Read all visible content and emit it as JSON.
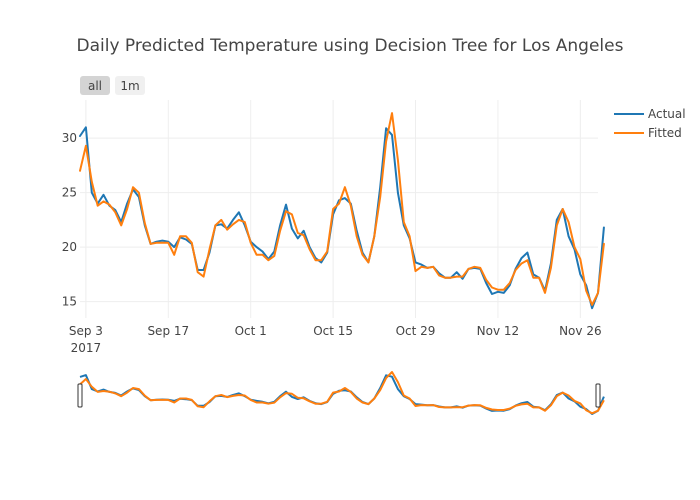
{
  "chart_data": {
    "type": "line",
    "title": "Daily Predicted Temperature using Decision Tree for Los Angeles",
    "xlabel": "",
    "ylabel": "",
    "x_start": "2017-09-02",
    "x_range": [
      "2017-09-02",
      "2017-11-29"
    ],
    "ylim": [
      13.5,
      33.5
    ],
    "yticks": [
      15,
      20,
      25,
      30
    ],
    "xticks": [
      {
        "date": "2017-09-03",
        "label": "Sep 3",
        "sublabel": "2017"
      },
      {
        "date": "2017-09-17",
        "label": "Sep 17",
        "sublabel": ""
      },
      {
        "date": "2017-10-01",
        "label": "Oct 1",
        "sublabel": ""
      },
      {
        "date": "2017-10-15",
        "label": "Oct 15",
        "sublabel": ""
      },
      {
        "date": "2017-10-29",
        "label": "Oct 29",
        "sublabel": ""
      },
      {
        "date": "2017-11-12",
        "label": "Nov 12",
        "sublabel": ""
      },
      {
        "date": "2017-11-26",
        "label": "Nov 26",
        "sublabel": ""
      }
    ],
    "grid": true,
    "legend_position": "top-right",
    "range_buttons": [
      "all",
      "1m"
    ],
    "active_button": "all",
    "range_slider": true,
    "series": [
      {
        "name": "Actual",
        "color": "#1f77b4",
        "values": [
          30.2,
          31.0,
          25.0,
          24.0,
          24.8,
          23.8,
          23.4,
          22.3,
          24.0,
          25.3,
          24.6,
          22.0,
          20.3,
          20.5,
          20.6,
          20.5,
          20.0,
          20.9,
          20.7,
          20.3,
          17.9,
          17.9,
          19.5,
          22.0,
          22.1,
          21.7,
          22.5,
          23.2,
          22.0,
          20.5,
          20.0,
          19.6,
          18.9,
          19.6,
          22.0,
          23.9,
          21.7,
          20.8,
          21.5,
          20.0,
          19.0,
          18.6,
          19.5,
          23.0,
          24.3,
          24.5,
          24.0,
          21.5,
          19.5,
          18.6,
          21.0,
          25.5,
          30.9,
          30.3,
          25.0,
          22.0,
          20.8,
          18.6,
          18.4,
          18.1,
          18.2,
          17.6,
          17.2,
          17.2,
          17.7,
          17.1,
          18.0,
          18.1,
          18.0,
          16.7,
          15.7,
          15.9,
          15.8,
          16.5,
          18.0,
          19.0,
          19.5,
          17.5,
          17.2,
          16.0,
          18.5,
          22.5,
          23.5,
          21.0,
          19.8,
          17.5,
          16.5,
          14.4,
          15.8,
          21.8
        ],
        "values_note": "daily values starting 2017-09-02"
      },
      {
        "name": "Fitted",
        "color": "#ff7f0e",
        "values": [
          27.0,
          29.3,
          26.0,
          23.8,
          24.2,
          23.9,
          23.2,
          22.0,
          23.5,
          25.5,
          25.0,
          22.2,
          20.3,
          20.4,
          20.4,
          20.4,
          19.3,
          21.0,
          21.0,
          20.4,
          17.7,
          17.3,
          19.8,
          22.0,
          22.5,
          21.6,
          22.1,
          22.5,
          22.3,
          20.4,
          19.3,
          19.3,
          18.8,
          19.2,
          21.5,
          23.3,
          23.0,
          21.3,
          21.1,
          19.8,
          18.8,
          18.8,
          19.6,
          23.5,
          24.0,
          25.5,
          23.8,
          21.0,
          19.3,
          18.6,
          21.0,
          24.6,
          29.7,
          32.3,
          28.0,
          22.3,
          21.0,
          17.8,
          18.2,
          18.1,
          18.2,
          17.4,
          17.2,
          17.2,
          17.3,
          17.3,
          18.0,
          18.2,
          18.1,
          17.0,
          16.3,
          16.1,
          16.1,
          16.7,
          17.9,
          18.5,
          18.8,
          17.2,
          17.2,
          15.8,
          18.1,
          22.0,
          23.5,
          22.3,
          20.0,
          18.9,
          16.0,
          14.7,
          15.8,
          20.3
        ]
      }
    ]
  }
}
